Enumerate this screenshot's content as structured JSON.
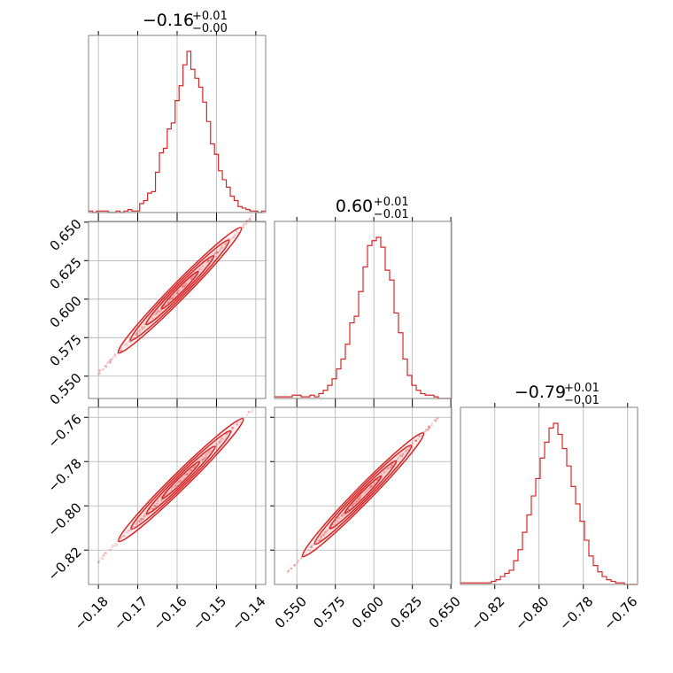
{
  "chart_data": {
    "type": "corner",
    "parameters": [
      "p1",
      "p2",
      "p3"
    ],
    "colors": {
      "line": "#d62728",
      "grid": "#b0b0b0",
      "frame": "#808080"
    },
    "grid": true,
    "marginal_titles": [
      {
        "main": "−0.16",
        "sup": "+0.01",
        "sub": "−0.00"
      },
      {
        "main": "0.60",
        "sup": "+0.01",
        "sub": "−0.01"
      },
      {
        "main": "−0.79",
        "sup": "+0.01",
        "sub": "−0.01"
      }
    ],
    "ranges": {
      "p1": [
        -0.1825,
        -0.1375
      ],
      "p2": [
        0.5355,
        0.6505
      ],
      "p3": [
        -0.8355,
        -0.7555
      ]
    },
    "ticks": {
      "p1": [
        -0.18,
        -0.17,
        -0.16,
        -0.15,
        -0.14
      ],
      "p2": [
        0.55,
        0.575,
        0.6,
        0.625,
        0.65
      ],
      "p3": [
        -0.82,
        -0.8,
        -0.78,
        -0.76
      ]
    },
    "tick_labels": {
      "p1_x": [
        "−0.18",
        "−0.17",
        "−0.16",
        "−0.15",
        "−0.14"
      ],
      "p2_x": [
        "0.550",
        "0.575",
        "0.600",
        "0.625",
        "0.650"
      ],
      "p2_y": [
        "0.550",
        "0.575",
        "0.600",
        "0.625",
        "0.650"
      ],
      "p3_x": [
        "−0.82",
        "−0.80",
        "−0.78",
        "−0.76"
      ],
      "p3_y": [
        "−0.82",
        "−0.80",
        "−0.78",
        "−0.76"
      ]
    },
    "histograms": {
      "p1": {
        "range": [
          -0.1825,
          -0.1375
        ],
        "counts": [
          1,
          0,
          1,
          1,
          1,
          0,
          0,
          1,
          0,
          1,
          2,
          1,
          1,
          6,
          8,
          13,
          14,
          27,
          40,
          43,
          56,
          60,
          75,
          85,
          99,
          108,
          96,
          90,
          84,
          74,
          61,
          46,
          39,
          28,
          22,
          17,
          11,
          8,
          4,
          3,
          2,
          1,
          1,
          0,
          1
        ]
      },
      "p2": {
        "range": [
          0.5355,
          0.6505
        ],
        "counts": [
          1,
          1,
          1,
          1,
          2,
          2,
          1,
          1,
          2,
          1,
          3,
          5,
          8,
          12,
          18,
          24,
          33,
          46,
          50,
          65,
          80,
          93,
          96,
          98,
          92,
          78,
          72,
          52,
          40,
          24,
          14,
          8,
          5,
          3,
          2,
          2,
          1,
          0,
          0,
          0
        ]
      },
      "p3": {
        "range": [
          -0.8355,
          -0.7555
        ],
        "counts": [
          1,
          1,
          1,
          1,
          1,
          1,
          1,
          2,
          3,
          5,
          7,
          9,
          15,
          22,
          33,
          44,
          56,
          67,
          80,
          90,
          99,
          102,
          95,
          86,
          75,
          62,
          51,
          40,
          28,
          18,
          12,
          8,
          5,
          3,
          2,
          1,
          1,
          0,
          0,
          0
        ]
      }
    },
    "scatter_2d": [
      {
        "x": "p1",
        "y": "p2",
        "x_range": [
          -0.18,
          -0.141
        ],
        "slope": 2.6,
        "intercept": 1.02,
        "width": 0.0025,
        "spread": 0.008
      },
      {
        "x": "p1",
        "y": "p3",
        "x_range": [
          -0.18,
          -0.1405
        ],
        "slope": 1.75,
        "intercept": -0.51,
        "width": 0.002,
        "spread": 0.008
      },
      {
        "x": "p2",
        "y": "p3",
        "x_range": [
          0.544,
          0.642
        ],
        "slope": 0.71,
        "intercept": -1.216,
        "width": 0.0014,
        "spread": 0.02
      }
    ]
  }
}
